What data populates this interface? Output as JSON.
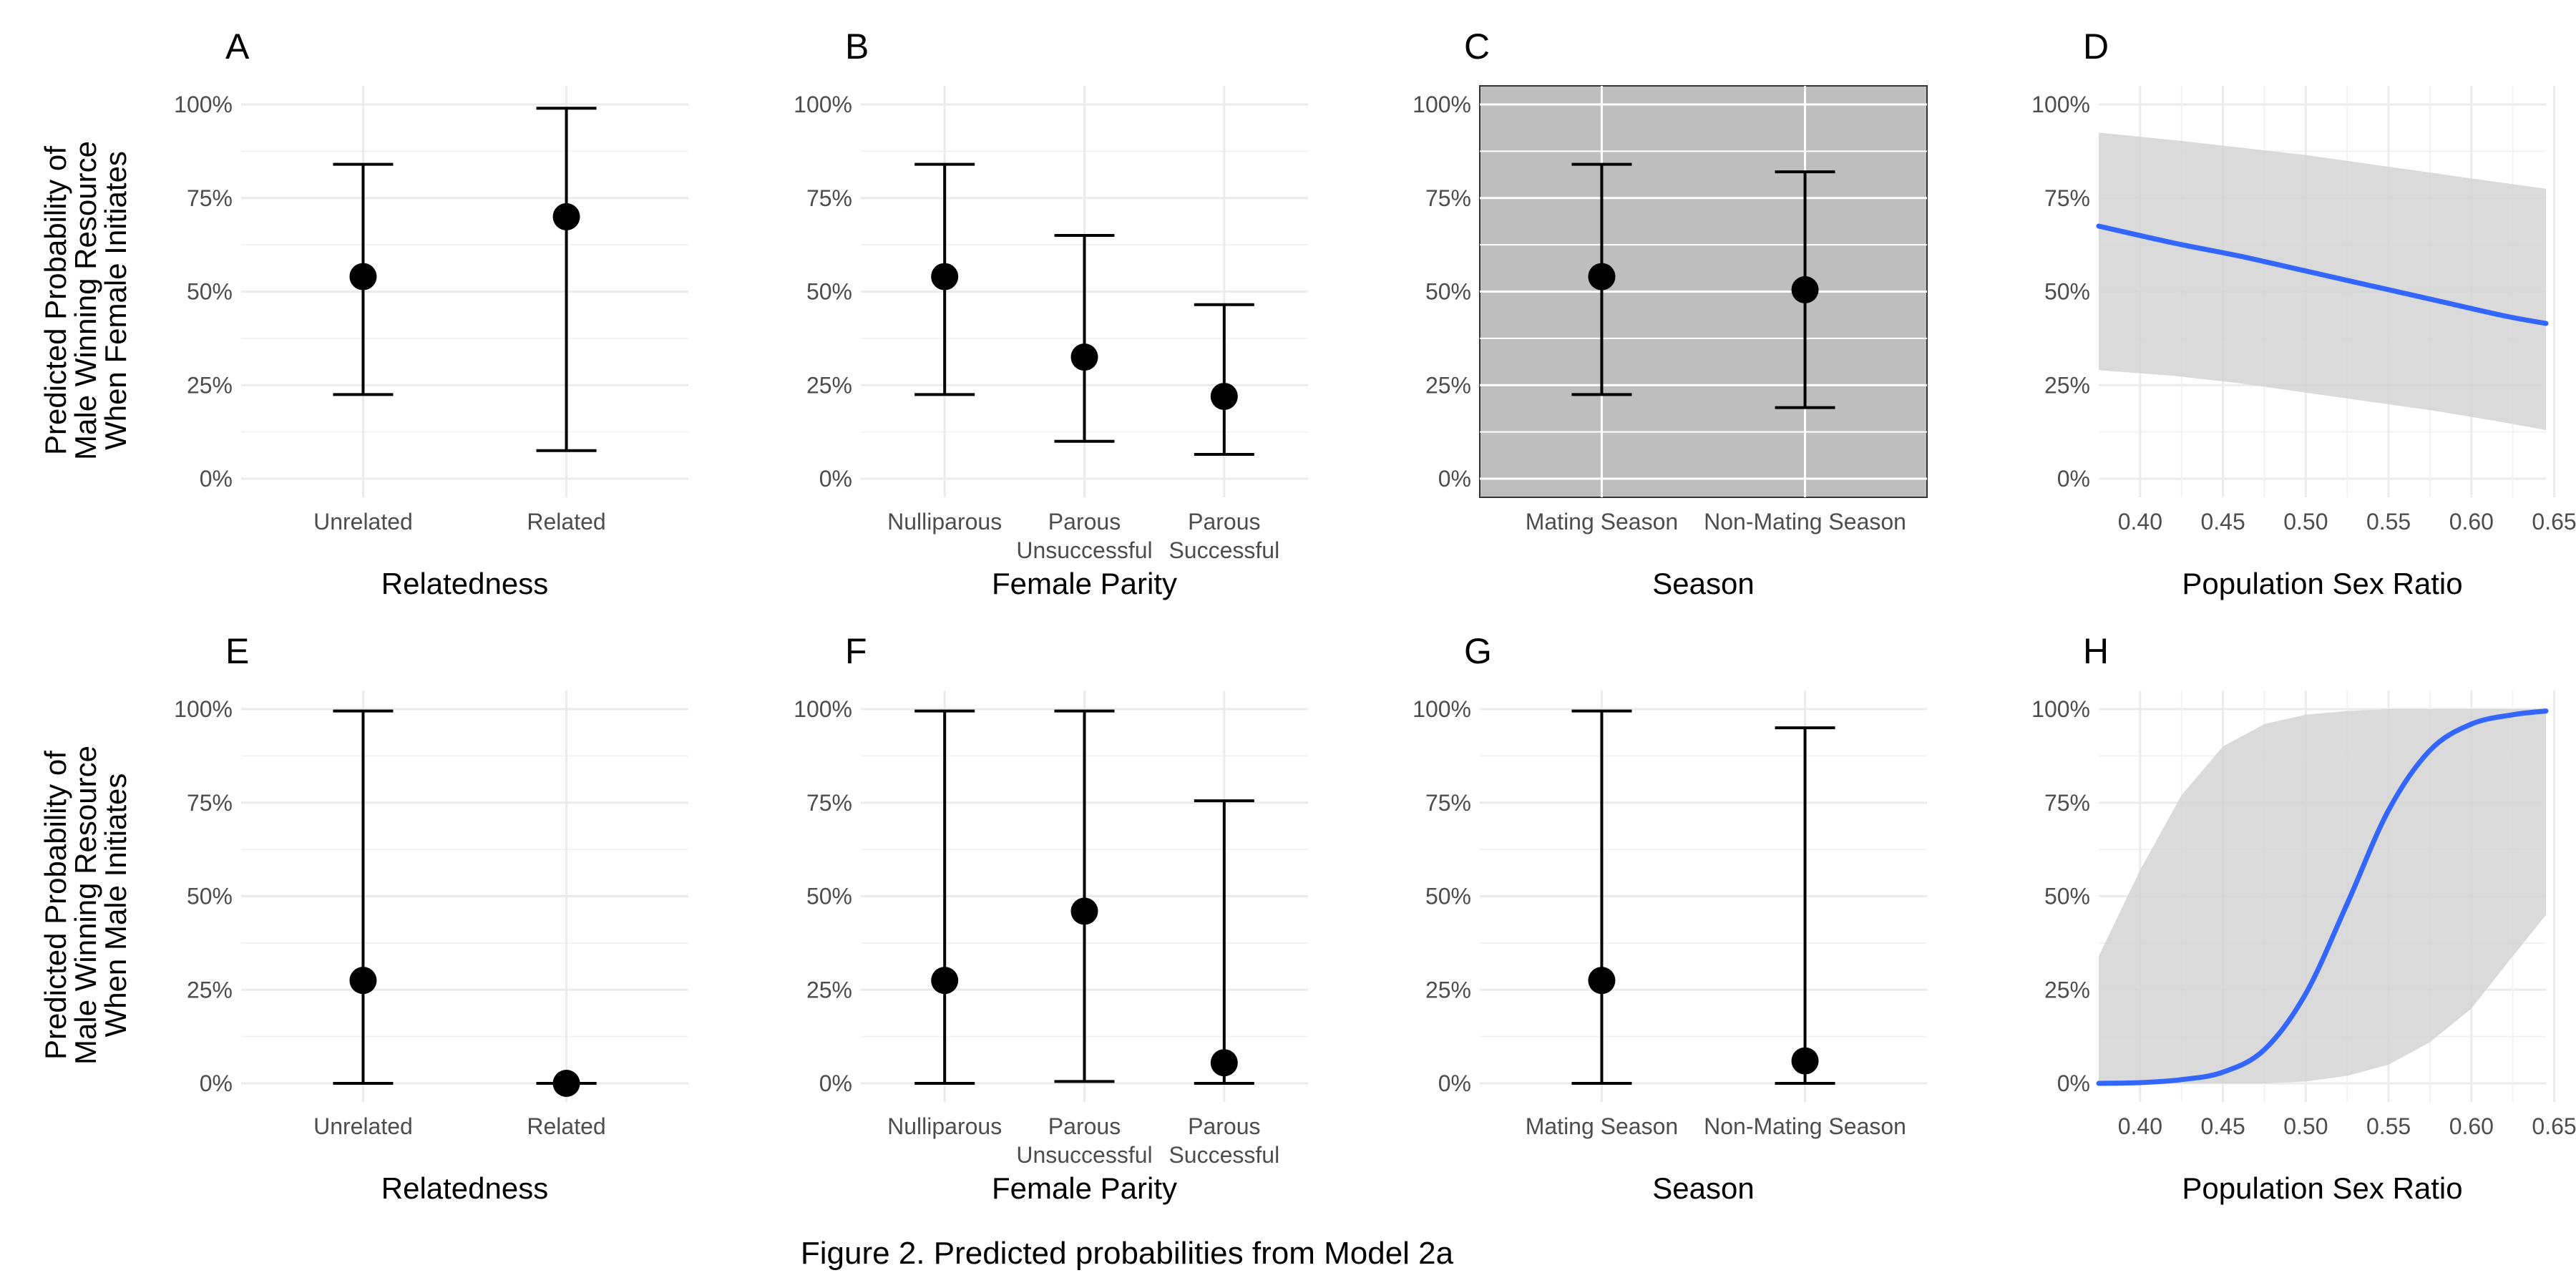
{
  "caption": "Figure 2. Predicted probabilities from Model 2a",
  "row_ylabels": [
    [
      "Predicted Probability of",
      "Male Winning Resource",
      "When Female Initiates"
    ],
    [
      "Predicted Probability of",
      "Male Winning Resource",
      "When Male Initiates"
    ]
  ],
  "y_ticks": [
    "0%",
    "25%",
    "50%",
    "75%",
    "100%"
  ],
  "colors": {
    "line": "#3366ff",
    "ribbon": "#d3d3d3",
    "points": "#000000",
    "panel_c_bg": "#bebebe"
  },
  "chart_data": [
    {
      "panel": "A",
      "type": "errorbar",
      "xlabel": "Relatedness",
      "categories": [
        [
          "Unrelated"
        ],
        [
          "Related"
        ]
      ],
      "estimate": [
        54,
        70
      ],
      "lower": [
        22.5,
        7.5
      ],
      "upper": [
        84,
        99
      ],
      "ylim": [
        0,
        100
      ]
    },
    {
      "panel": "B",
      "type": "errorbar",
      "xlabel": "Female Parity",
      "categories": [
        [
          "Nulliparous"
        ],
        [
          "Parous",
          "Unsuccessful"
        ],
        [
          "Parous",
          "Successful"
        ]
      ],
      "estimate": [
        54,
        32.5,
        22
      ],
      "lower": [
        22.5,
        10,
        6.5
      ],
      "upper": [
        84,
        65,
        46.5
      ],
      "ylim": [
        0,
        100
      ]
    },
    {
      "panel": "C",
      "type": "errorbar",
      "xlabel": "Season",
      "gray_background": true,
      "categories": [
        [
          "Mating Season"
        ],
        [
          "Non-Mating Season"
        ]
      ],
      "estimate": [
        54,
        50.5
      ],
      "lower": [
        22.5,
        19
      ],
      "upper": [
        84,
        82
      ],
      "ylim": [
        0,
        100
      ]
    },
    {
      "panel": "D",
      "type": "line_ribbon",
      "xlabel": "Population Sex Ratio",
      "x_ticks": [
        "0.40",
        "0.45",
        "0.50",
        "0.55",
        "0.60",
        "0.65"
      ],
      "xlim": [
        0.375,
        0.645
      ],
      "x": [
        0.375,
        0.42,
        0.46,
        0.5,
        0.54,
        0.58,
        0.62,
        0.645
      ],
      "y": [
        67.5,
        63,
        59.5,
        55.5,
        51.5,
        47.5,
        43.5,
        41.5
      ],
      "lower": [
        29,
        27.5,
        25.5,
        23,
        20.5,
        18,
        15,
        13
      ],
      "upper": [
        92.5,
        90.5,
        88.5,
        86.5,
        84,
        81.5,
        79,
        77.5
      ],
      "ylim": [
        0,
        100
      ]
    },
    {
      "panel": "E",
      "type": "errorbar",
      "xlabel": "Relatedness",
      "categories": [
        [
          "Unrelated"
        ],
        [
          "Related"
        ]
      ],
      "estimate": [
        27.5,
        0
      ],
      "lower": [
        0,
        0
      ],
      "upper": [
        99.5,
        0
      ],
      "ylim": [
        0,
        100
      ]
    },
    {
      "panel": "F",
      "type": "errorbar",
      "xlabel": "Female Parity",
      "categories": [
        [
          "Nulliparous"
        ],
        [
          "Parous",
          "Unsuccessful"
        ],
        [
          "Parous",
          "Successful"
        ]
      ],
      "estimate": [
        27.5,
        46,
        5.5
      ],
      "lower": [
        0,
        0.5,
        0
      ],
      "upper": [
        99.5,
        99.5,
        75.5
      ],
      "ylim": [
        0,
        100
      ]
    },
    {
      "panel": "G",
      "type": "errorbar",
      "xlabel": "Season",
      "categories": [
        [
          "Mating Season"
        ],
        [
          "Non-Mating Season"
        ]
      ],
      "estimate": [
        27.5,
        6
      ],
      "lower": [
        0,
        0
      ],
      "upper": [
        99.5,
        95
      ],
      "ylim": [
        0,
        100
      ]
    },
    {
      "panel": "H",
      "type": "line_ribbon",
      "xlabel": "Population Sex Ratio",
      "x_ticks": [
        "0.40",
        "0.45",
        "0.50",
        "0.55",
        "0.60",
        "0.65"
      ],
      "xlim": [
        0.375,
        0.645
      ],
      "x": [
        0.375,
        0.4,
        0.425,
        0.45,
        0.475,
        0.5,
        0.525,
        0.55,
        0.575,
        0.6,
        0.625,
        0.645
      ],
      "y": [
        0,
        0.2,
        1,
        3,
        9,
        24,
        48,
        73,
        89,
        96,
        98.5,
        99.5
      ],
      "lower": [
        0,
        0,
        0,
        0,
        0,
        0.5,
        2,
        5,
        11,
        20,
        34,
        45
      ],
      "upper": [
        34,
        57,
        77,
        90,
        96,
        98.5,
        99.5,
        100,
        100,
        100,
        100,
        100
      ],
      "ylim": [
        0,
        100
      ]
    }
  ]
}
